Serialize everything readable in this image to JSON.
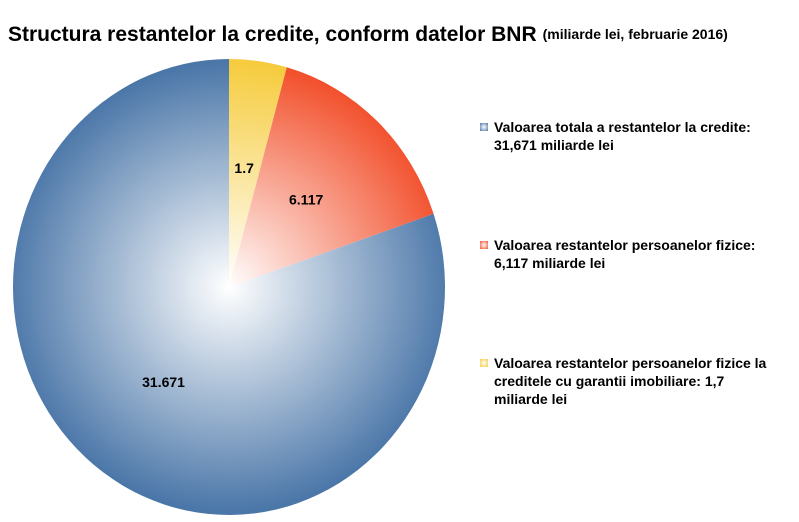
{
  "chart_data": {
    "type": "pie",
    "title": "Structura restantelor la credite, conform datelor BNR",
    "subtitle": "(miliarde lei, februarie 2016)",
    "categories": [
      "Valoarea totala a restantelor la credite: 31,671 miliarde lei",
      "Valoarea restantelor persoanelor fizice: 6,117 miliarde lei",
      "Valoarea restantelor persoanelor fizice la creditele cu garantii imobiliare: 1,7 miliarde lei"
    ],
    "values": [
      31.671,
      6.117,
      1.7
    ],
    "colors": [
      "#4a76a8",
      "#f2502c",
      "#f6cc3e"
    ],
    "legend": "right"
  }
}
